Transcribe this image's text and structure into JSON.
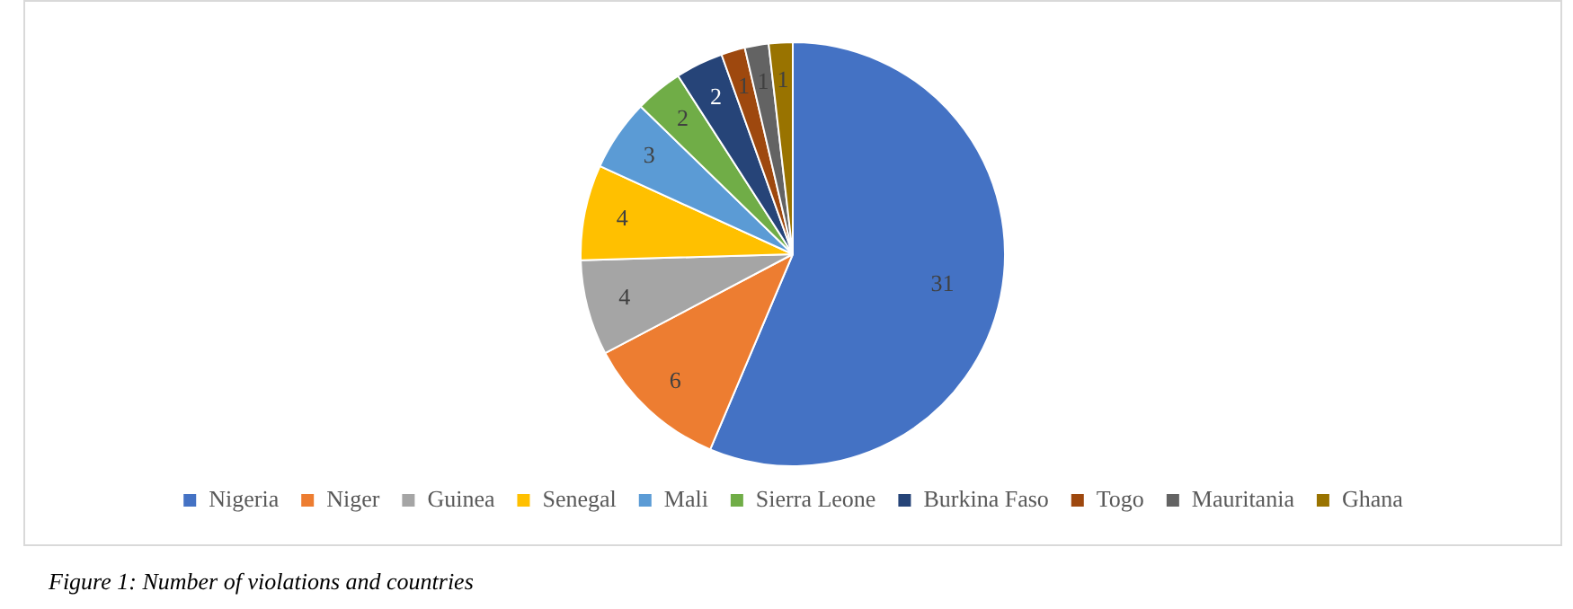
{
  "chart_data": {
    "type": "pie",
    "categories": [
      "Nigeria",
      "Niger",
      "Guinea",
      "Senegal",
      "Mali",
      "Sierra Leone",
      "Burkina Faso",
      "Togo",
      "Mauritania",
      "Ghana"
    ],
    "values": [
      31,
      6,
      4,
      4,
      3,
      2,
      2,
      1,
      1,
      1
    ],
    "colors": [
      "#4472c4",
      "#ed7d31",
      "#a5a5a5",
      "#ffc000",
      "#5b9bd5",
      "#70ad47",
      "#264478",
      "#9e480e",
      "#636363",
      "#997300"
    ],
    "data_labels": true,
    "legend": "bottom",
    "annotations": [
      "Figure 1: Number of violations and countries"
    ]
  }
}
